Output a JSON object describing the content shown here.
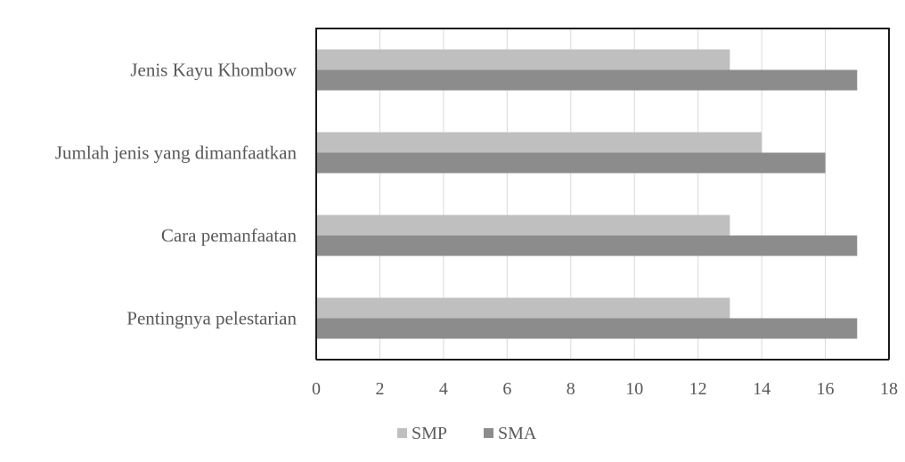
{
  "chart_data": {
    "type": "bar",
    "orientation": "horizontal",
    "categories": [
      "Jenis Kayu Khombow",
      "Jumlah jenis yang dimanfaatkan",
      "Cara pemanfaatan",
      "Pentingnya pelestarian"
    ],
    "series": [
      {
        "name": "SMP",
        "color": "#bfbfbf",
        "values": [
          13,
          14,
          13,
          13
        ]
      },
      {
        "name": "SMA",
        "color": "#8c8c8c",
        "values": [
          17,
          16,
          17,
          17
        ]
      }
    ],
    "xlim": [
      0,
      18
    ],
    "xticks": [
      "0",
      "2",
      "4",
      "6",
      "8",
      "10",
      "12",
      "14",
      "16",
      "18"
    ],
    "grid": true,
    "legend": "bottom"
  }
}
